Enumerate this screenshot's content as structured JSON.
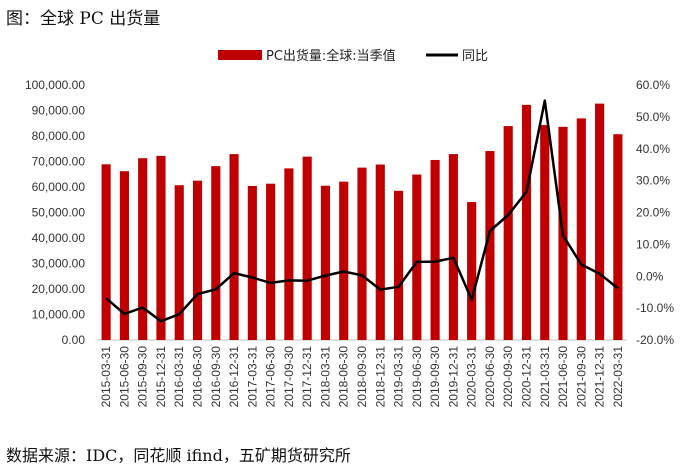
{
  "figure_title": "图：全球 PC 出货量",
  "source_note": "数据来源：IDC，同花顺 ifind，五矿期货研究所",
  "colors": {
    "bar": "#c00000",
    "line": "#000000"
  },
  "chart_data": {
    "type": "bar",
    "categories": [
      "2015-03-31",
      "2015-06-30",
      "2015-09-30",
      "2015-12-31",
      "2016-03-31",
      "2016-06-30",
      "2016-09-30",
      "2016-12-31",
      "2017-03-31",
      "2017-06-30",
      "2017-09-30",
      "2017-12-31",
      "2018-03-31",
      "2018-06-30",
      "2018-09-30",
      "2018-12-31",
      "2019-03-31",
      "2019-06-30",
      "2019-09-30",
      "2019-12-31",
      "2020-03-31",
      "2020-06-30",
      "2020-09-30",
      "2020-12-31",
      "2021-03-31",
      "2021-06-30",
      "2021-09-30",
      "2021-12-31",
      "2022-03-31"
    ],
    "series": [
      {
        "name": "PC出货量:全球:当季值",
        "type": "bar",
        "axis": "left",
        "values": [
          68900,
          66200,
          71300,
          72200,
          60700,
          62500,
          68200,
          72900,
          60400,
          61300,
          67300,
          71900,
          60500,
          62100,
          67600,
          68800,
          58500,
          64900,
          70600,
          72900,
          54100,
          74100,
          83900,
          92200,
          84300,
          83600,
          86900,
          92700,
          80700
        ]
      },
      {
        "name": "同比",
        "type": "line",
        "axis": "right",
        "values": [
          -6.9,
          -11.8,
          -9.8,
          -14.1,
          -11.9,
          -5.6,
          -4.1,
          1.0,
          -0.4,
          -2.1,
          -1.3,
          -1.4,
          0.2,
          1.5,
          0.3,
          -4.2,
          -3.3,
          4.5,
          4.6,
          5.8,
          -7.4,
          14.2,
          19.2,
          26.5,
          55.1,
          12.8,
          3.7,
          0.8,
          -3.8
        ]
      }
    ],
    "yAxisLeft": {
      "ylim": [
        0,
        100000
      ],
      "ticks": [
        "0.00",
        "10,000.00",
        "20,000.00",
        "30,000.00",
        "40,000.00",
        "50,000.00",
        "60,000.00",
        "70,000.00",
        "80,000.00",
        "90,000.00",
        "100,000.00"
      ]
    },
    "yAxisRight": {
      "ylim": [
        -20,
        60
      ],
      "ticks": [
        "-20.0%",
        "-10.0%",
        "0.0%",
        "10.0%",
        "20.0%",
        "30.0%",
        "40.0%",
        "50.0%",
        "60.0%"
      ]
    },
    "legend": "top-center",
    "grid": false
  }
}
